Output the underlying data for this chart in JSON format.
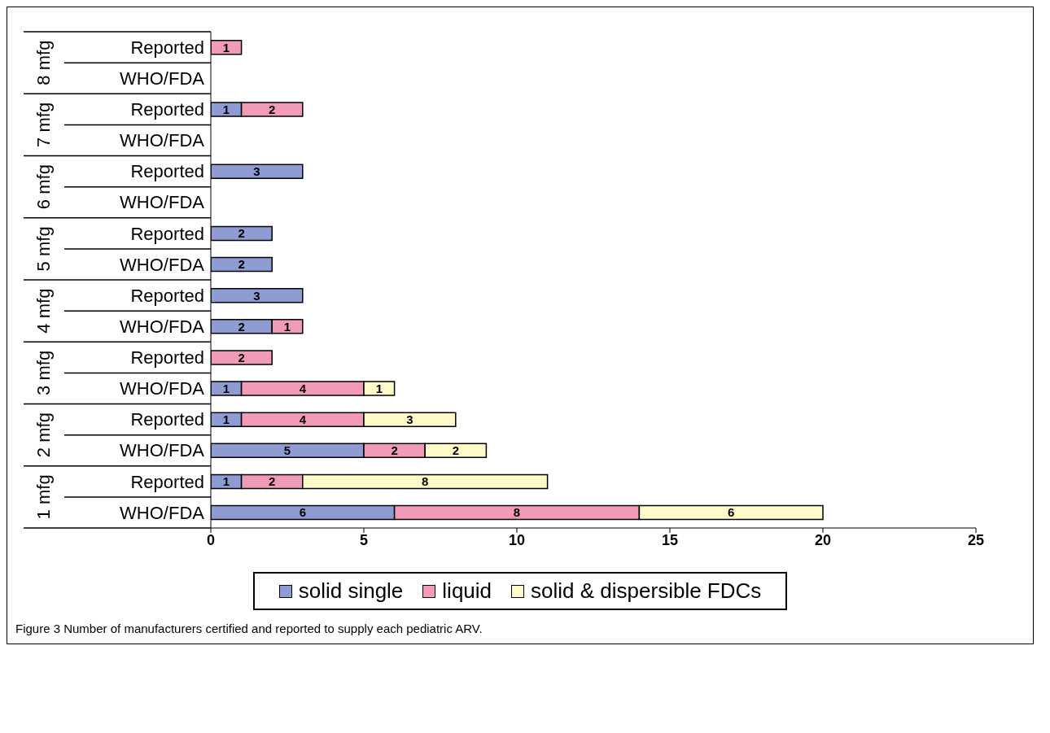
{
  "chart_data": {
    "type": "bar",
    "orientation": "horizontal",
    "stacked": true,
    "data_labels": true,
    "legend": "bottom",
    "categories": [
      "Reported",
      "WHO/FDA",
      "Reported",
      "WHO/FDA",
      "Reported",
      "WHO/FDA",
      "Reported",
      "WHO/FDA",
      "Reported",
      "WHO/FDA",
      "Reported",
      "WHO/FDA",
      "Reported",
      "WHO/FDA",
      "Reported",
      "WHO/FDA"
    ],
    "series": [
      {
        "name": "solid single",
        "color": "#8f9bd3",
        "values": [
          null,
          null,
          1,
          null,
          3,
          null,
          2,
          2,
          3,
          2,
          null,
          1,
          1,
          5,
          1,
          6
        ]
      },
      {
        "name": "liquid",
        "color": "#f29bb9",
        "values": [
          1,
          null,
          2,
          null,
          null,
          null,
          null,
          null,
          null,
          1,
          2,
          4,
          4,
          2,
          2,
          8
        ]
      },
      {
        "name": "solid & dispersible FDCs",
        "color": "#fffac8",
        "values": [
          null,
          null,
          null,
          null,
          null,
          null,
          null,
          null,
          null,
          null,
          null,
          1,
          3,
          2,
          8,
          6
        ]
      }
    ],
    "xlim": [
      0,
      25
    ],
    "xticks": [
      0,
      5,
      10,
      15,
      20,
      25
    ],
    "annotations": [
      "8 mfg",
      "7 mfg",
      "6 mfg",
      "5 mfg",
      "4 mfg",
      "3 mfg",
      "2 mfg",
      "1 mfg",
      "Figure 3 Number of manufacturers certified and reported to supply each pediatric ARV."
    ]
  }
}
